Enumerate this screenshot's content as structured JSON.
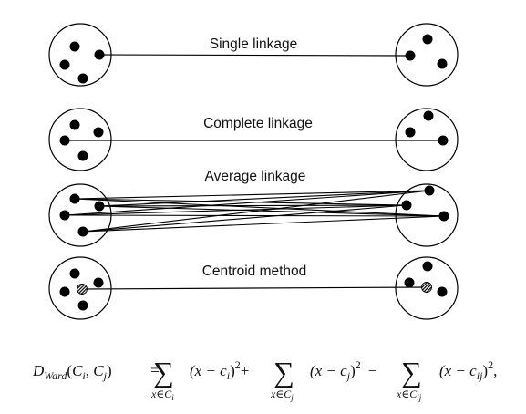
{
  "labels": {
    "single": "Single linkage",
    "complete": "Complete linkage",
    "average": "Average linkage",
    "centroid": "Centroid method"
  },
  "formula": {
    "lhs_D": "D",
    "lhs_sub": "Ward",
    "lhs_args_open": "(",
    "lhs_Ci": "C",
    "lhs_i": "i",
    "lhs_comma": ", ",
    "lhs_Cj": "C",
    "lhs_j": "j",
    "lhs_close": ")",
    "equals": "=",
    "sum": "∑",
    "term1": "(x − c",
    "term1_sub": "i",
    "term_close": ")",
    "sq": "2",
    "plus": "+",
    "minus": "−",
    "term2": "(x − c",
    "term2_sub": "j",
    "term3": "(x − c",
    "term3_sub": "ij",
    "below1": "x∈C",
    "below1_sub": "i",
    "below2": "x∈C",
    "below2_sub": "j",
    "below3": "x∈C",
    "below3_sub": "ij",
    "end": ","
  }
}
